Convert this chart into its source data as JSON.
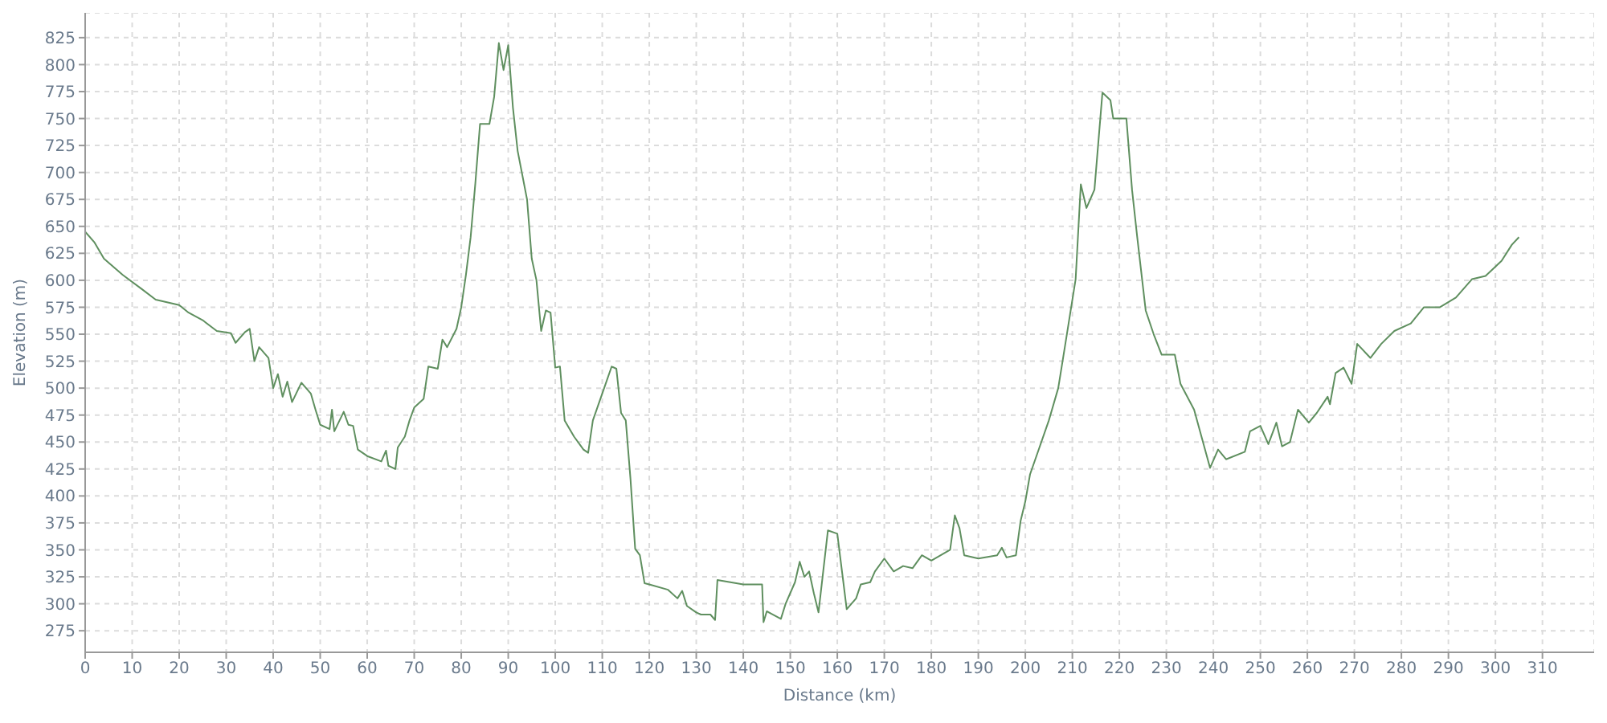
{
  "chart_data": {
    "type": "line",
    "xlabel": "Distance (km)",
    "ylabel": "Elevation (m)",
    "x": [
      0,
      2,
      4,
      8,
      12,
      15,
      20,
      22,
      25,
      28,
      31,
      32,
      34,
      35,
      36,
      37,
      39,
      40,
      41,
      42,
      43,
      44,
      46,
      48,
      49,
      50,
      52,
      52.5,
      53,
      55,
      56,
      57,
      58,
      60,
      63,
      64,
      64.5,
      66,
      66.5,
      68,
      69,
      70,
      72,
      73,
      75,
      76,
      77,
      79,
      80,
      81,
      82,
      83,
      84,
      86,
      87,
      88,
      89,
      90,
      91,
      92,
      94,
      95,
      96,
      97,
      98,
      99,
      100,
      101,
      102,
      104,
      106,
      107,
      108,
      110,
      112,
      113,
      114,
      115,
      116,
      117,
      118,
      119,
      120,
      124,
      126,
      127,
      128,
      130,
      131,
      133,
      134,
      134.5,
      140,
      144,
      144.3,
      145,
      148,
      149,
      151,
      152,
      153,
      154,
      155,
      156,
      157,
      158,
      160,
      161,
      162,
      164,
      165,
      167,
      168,
      170,
      172,
      174,
      176,
      178,
      180,
      182,
      184,
      185,
      186,
      187,
      190,
      194,
      195,
      196,
      198,
      199,
      200,
      201,
      203,
      205,
      207,
      208.4,
      210.7,
      211.8,
      213,
      214.7,
      216.4,
      218.1,
      218.7,
      221.5,
      222.7,
      223.8,
      225.6,
      227.3,
      229,
      231.8,
      233,
      235.9,
      237.6,
      239.3,
      241,
      242.7,
      246.7,
      247.8,
      250,
      251.7,
      253.4,
      254.6,
      256.3,
      258,
      260.3,
      262,
      264.3,
      264.8,
      266,
      267.7,
      269.4,
      270.6,
      273.4,
      275.7,
      278.5,
      282,
      284.8,
      288.2,
      291.6,
      295,
      297.9,
      301.3,
      303.5,
      305
    ],
    "series": [
      {
        "color": "#5f8f5f",
        "values": [
          645,
          635,
          620,
          605,
          592,
          582,
          577,
          570,
          563,
          553,
          551,
          542,
          552,
          555,
          525,
          538,
          528,
          500,
          513,
          492,
          506,
          487,
          505,
          495,
          480,
          466,
          462,
          480,
          460,
          478,
          466,
          465,
          443,
          437,
          432,
          442,
          428,
          425,
          445,
          455,
          470,
          482,
          490,
          520,
          518,
          545,
          538,
          555,
          575,
          605,
          640,
          690,
          745,
          745,
          770,
          820,
          795,
          818,
          760,
          720,
          675,
          620,
          600,
          553,
          572,
          570,
          519,
          520,
          470,
          455,
          443,
          440,
          470,
          495,
          520,
          518,
          477,
          470,
          416,
          351,
          345,
          319,
          318,
          313,
          305,
          312,
          298,
          292,
          290,
          290,
          285,
          322,
          318,
          318,
          283,
          293,
          286,
          300,
          320,
          339,
          325,
          330,
          310,
          292,
          330,
          368,
          365,
          330,
          295,
          305,
          318,
          320,
          330,
          342,
          330,
          335,
          333,
          345,
          340,
          345,
          350,
          382,
          370,
          345,
          342,
          345,
          352,
          343,
          345,
          377,
          395,
          420,
          445,
          470,
          500,
          538,
          601,
          689,
          667,
          684,
          774,
          767,
          750,
          750,
          684,
          640,
          572,
          550,
          531,
          531,
          504,
          480,
          453,
          426,
          443,
          434,
          441,
          460,
          465,
          448,
          468,
          446,
          450,
          480,
          468,
          477,
          492,
          485,
          514,
          519,
          504,
          541,
          528,
          541,
          553,
          560,
          575,
          575,
          584,
          601,
          604,
          618,
          633,
          640
        ]
      }
    ],
    "xlim": [
      0,
      321
    ],
    "ylim": [
      255,
      848
    ],
    "xticks": [
      0,
      10,
      20,
      30,
      40,
      50,
      60,
      70,
      80,
      90,
      100,
      110,
      120,
      130,
      140,
      150,
      160,
      170,
      180,
      190,
      200,
      210,
      220,
      230,
      240,
      250,
      260,
      270,
      280,
      290,
      300,
      310
    ],
    "yticks": [
      275,
      300,
      325,
      350,
      375,
      400,
      425,
      450,
      475,
      500,
      525,
      550,
      575,
      600,
      625,
      650,
      675,
      700,
      725,
      750,
      775,
      800,
      825
    ],
    "grid": true,
    "legend": false
  }
}
